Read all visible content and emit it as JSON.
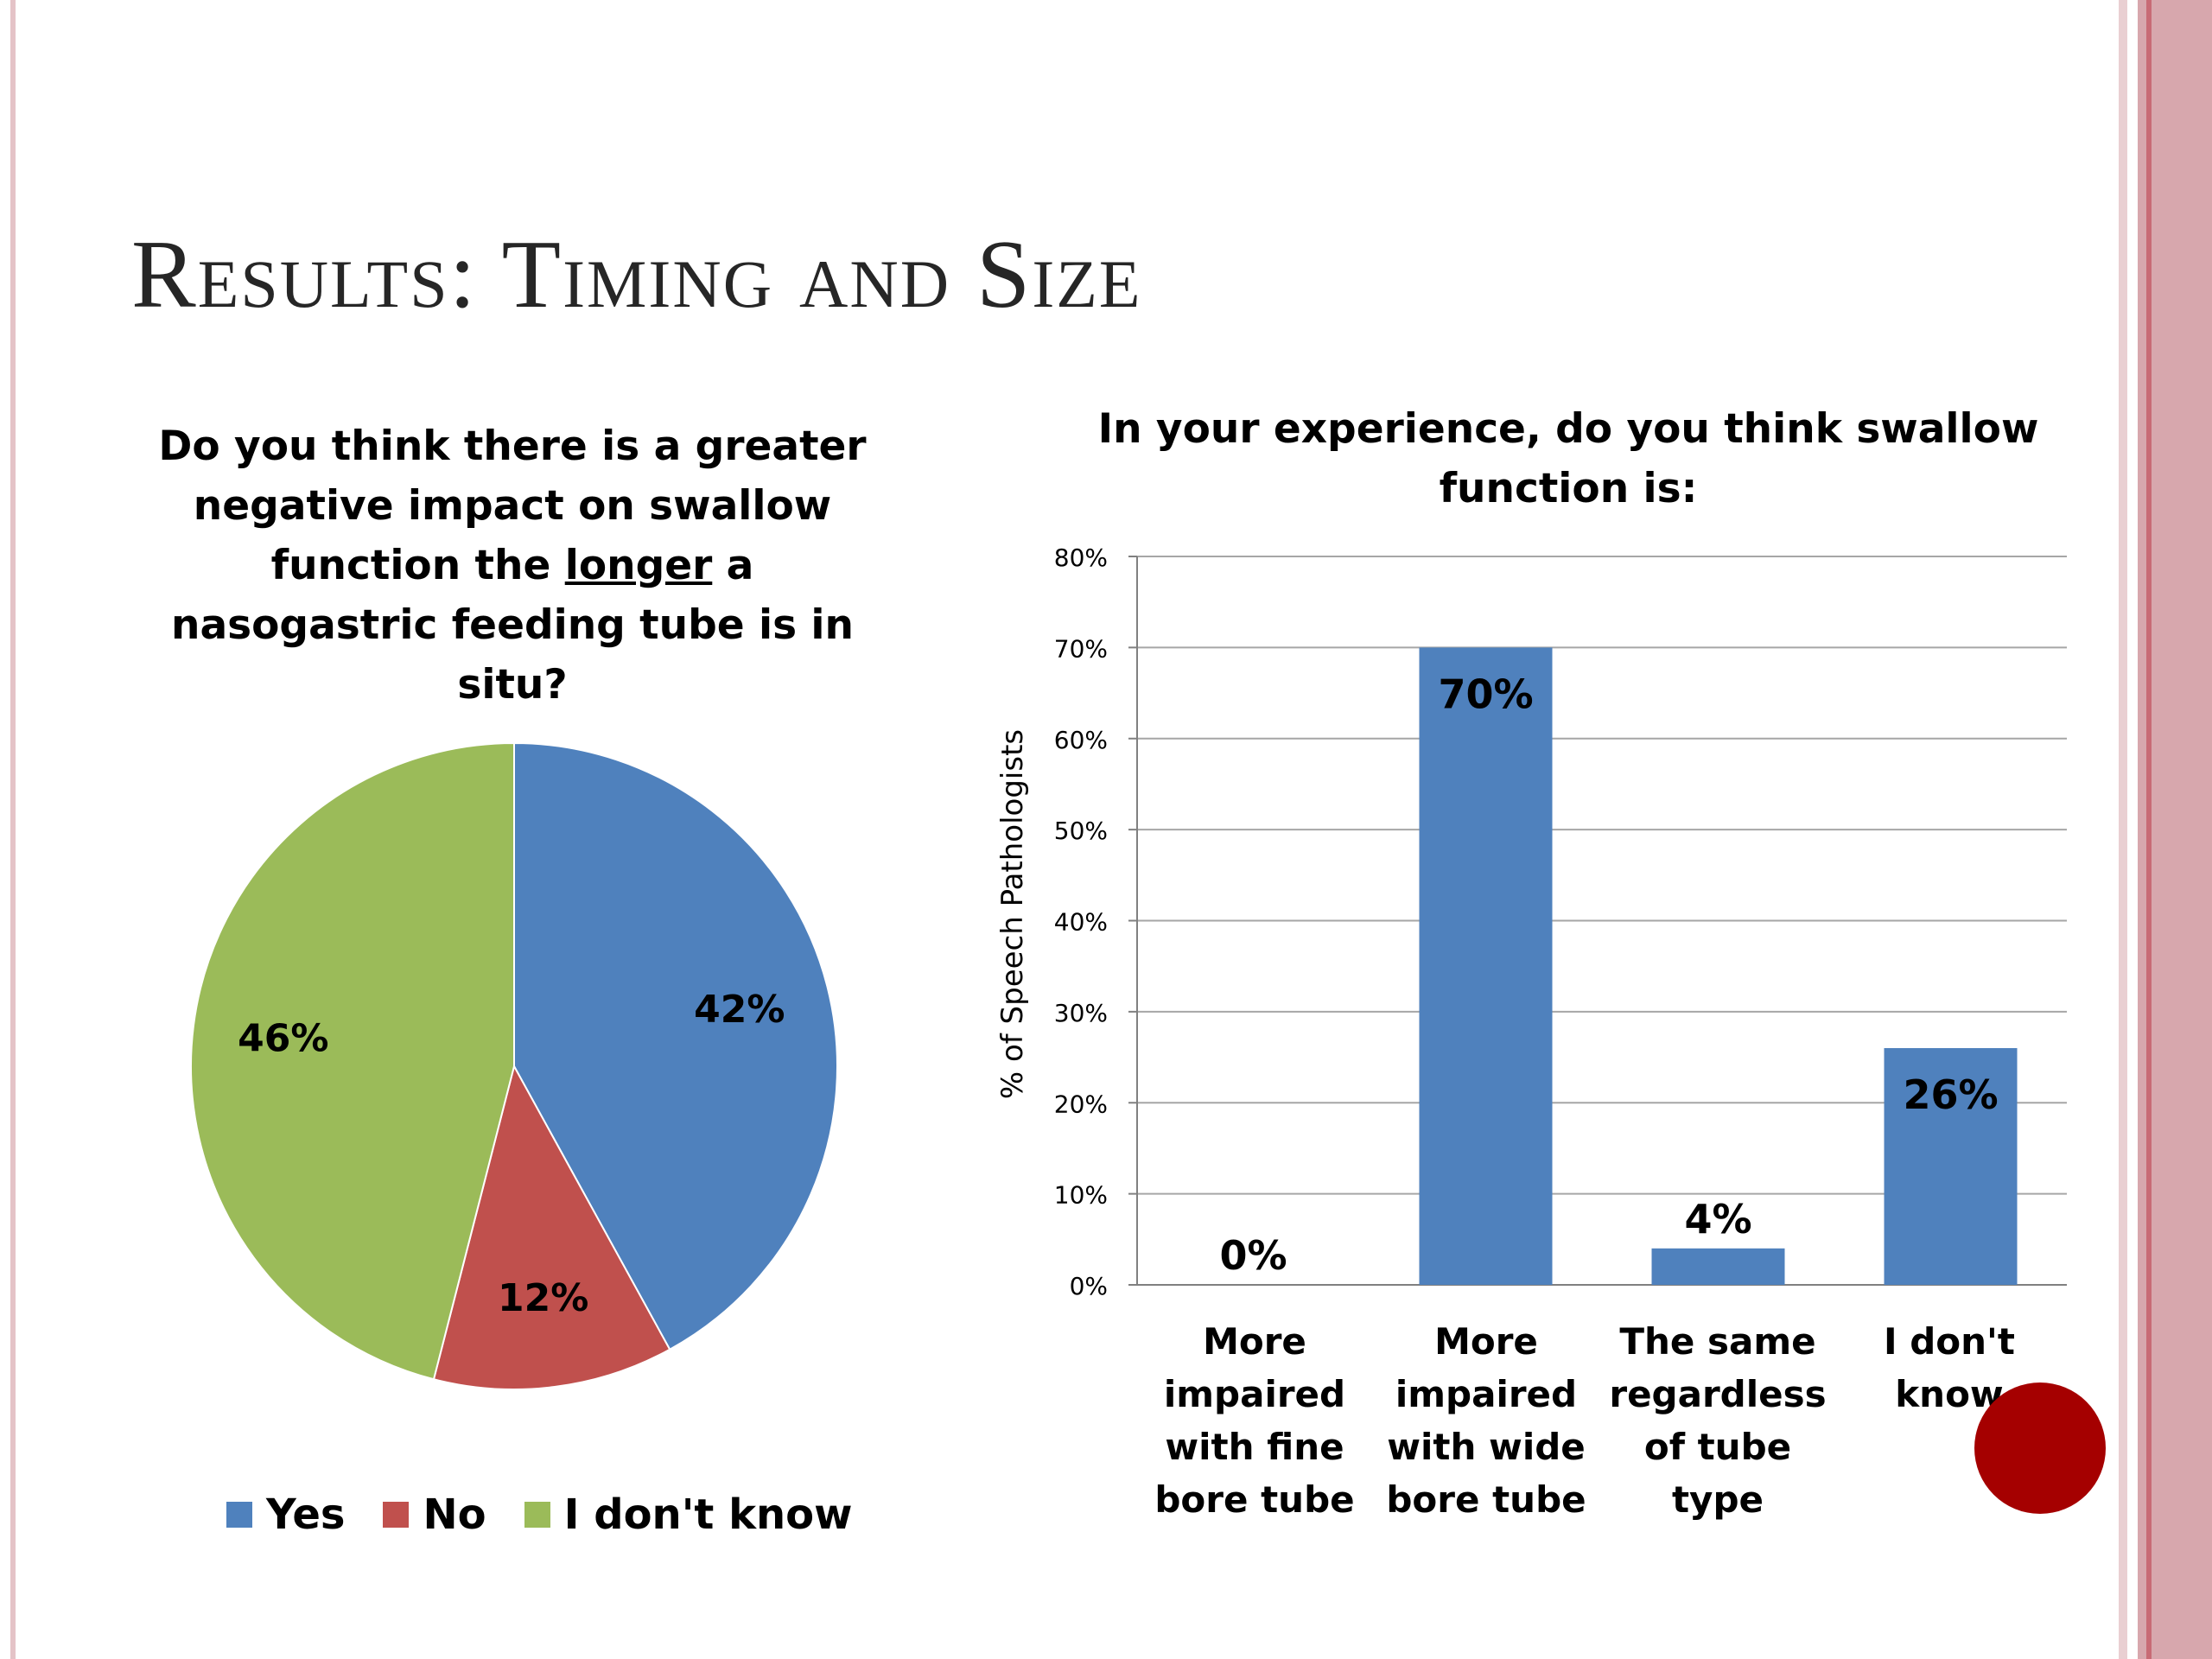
{
  "slide": {
    "title": "Results: Timing and Size",
    "colors": {
      "frame": "#d7a7ad",
      "frame_accent": "#c86b75",
      "decoration": "#a50000"
    }
  },
  "chart_data": [
    {
      "type": "pie",
      "title": {
        "before": "Do you think there is a greater negative impact on swallow function the ",
        "underlined": "longer",
        "after": " a nasogastric feeding tube is in situ?"
      },
      "slices": [
        {
          "label": "Yes",
          "value": 42,
          "display": "42%",
          "color": "#4f81bd"
        },
        {
          "label": "No",
          "value": 12,
          "display": "12%",
          "color": "#c0504d"
        },
        {
          "label": "I don't know",
          "value": 46,
          "display": "46%",
          "color": "#9bbb59"
        }
      ],
      "legend": "bottom",
      "start": "top, clockwise"
    },
    {
      "type": "bar",
      "title": "In your experience, do you think swallow function is:",
      "ylabel": "% of Speech Pathologists",
      "xlabel": "",
      "ylim": [
        0,
        80
      ],
      "yticks": [
        0,
        10,
        20,
        30,
        40,
        50,
        60,
        70,
        80
      ],
      "ytick_labels": [
        "0%",
        "10%",
        "20%",
        "30%",
        "40%",
        "50%",
        "60%",
        "70%",
        "80%"
      ],
      "categories": [
        "More impaired with fine bore tube",
        "More impaired with wide bore tube",
        "The same regardless of tube type",
        "I don't know"
      ],
      "values": [
        0,
        70,
        4,
        26
      ],
      "data_labels": [
        "0%",
        "70%",
        "4%",
        "26%"
      ],
      "bar_color": "#4f81bd",
      "grid": true,
      "legend": "none"
    }
  ]
}
